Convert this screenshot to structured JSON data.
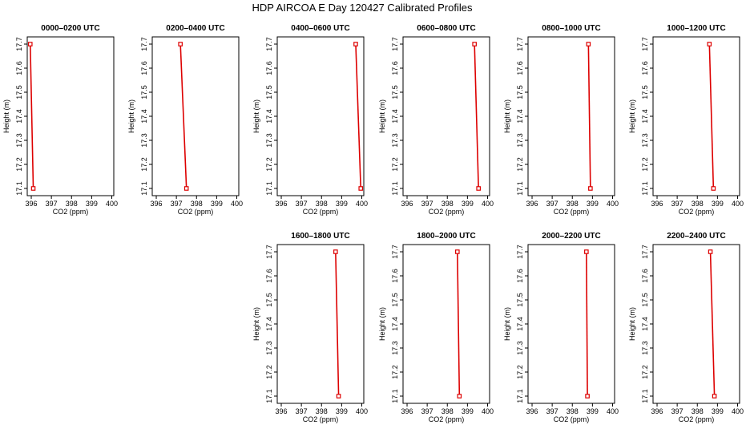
{
  "title": "HDP AIRCOA E  Day 120427  Calibrated Profiles",
  "chart_data": [
    {
      "type": "line",
      "title": "0000–0200 UTC",
      "xlabel": "CO2 (ppm)",
      "ylabel": "Height (m)",
      "xlim": [
        395.8,
        400.1
      ],
      "ylim": [
        17.07,
        17.73
      ],
      "xticks": [
        "396",
        "397",
        "398",
        "399",
        "400"
      ],
      "yticks": [
        "17.1",
        "17.2",
        "17.3",
        "17.4",
        "17.5",
        "17.6",
        "17.7"
      ],
      "series": [
        {
          "x": [
            395.95,
            396.1
          ],
          "y": [
            17.7,
            17.1
          ]
        }
      ]
    },
    {
      "type": "line",
      "title": "0200–0400 UTC",
      "xlabel": "CO2 (ppm)",
      "ylabel": "Height (m)",
      "xlim": [
        395.8,
        400.1
      ],
      "ylim": [
        17.07,
        17.73
      ],
      "xticks": [
        "396",
        "397",
        "398",
        "399",
        "400"
      ],
      "yticks": [
        "17.1",
        "17.2",
        "17.3",
        "17.4",
        "17.5",
        "17.6",
        "17.7"
      ],
      "series": [
        {
          "x": [
            397.2,
            397.5
          ],
          "y": [
            17.7,
            17.1
          ]
        }
      ]
    },
    {
      "type": "line",
      "title": "0400–0600 UTC",
      "xlabel": "CO2 (ppm)",
      "ylabel": "Height (m)",
      "xlim": [
        395.8,
        400.1
      ],
      "ylim": [
        17.07,
        17.73
      ],
      "xticks": [
        "396",
        "397",
        "398",
        "399",
        "400"
      ],
      "yticks": [
        "17.1",
        "17.2",
        "17.3",
        "17.4",
        "17.5",
        "17.6",
        "17.7"
      ],
      "series": [
        {
          "x": [
            399.7,
            399.95
          ],
          "y": [
            17.7,
            17.1
          ]
        }
      ]
    },
    {
      "type": "line",
      "title": "0600–0800 UTC",
      "xlabel": "CO2 (ppm)",
      "ylabel": "Height (m)",
      "xlim": [
        395.8,
        400.1
      ],
      "ylim": [
        17.07,
        17.73
      ],
      "xticks": [
        "396",
        "397",
        "398",
        "399",
        "400"
      ],
      "yticks": [
        "17.1",
        "17.2",
        "17.3",
        "17.4",
        "17.5",
        "17.6",
        "17.7"
      ],
      "series": [
        {
          "x": [
            399.35,
            399.55
          ],
          "y": [
            17.7,
            17.1
          ]
        }
      ]
    },
    {
      "type": "line",
      "title": "0800–1000 UTC",
      "xlabel": "CO2 (ppm)",
      "ylabel": "Height (m)",
      "xlim": [
        395.8,
        400.1
      ],
      "ylim": [
        17.07,
        17.73
      ],
      "xticks": [
        "396",
        "397",
        "398",
        "399",
        "400"
      ],
      "yticks": [
        "17.1",
        "17.2",
        "17.3",
        "17.4",
        "17.5",
        "17.6",
        "17.7"
      ],
      "series": [
        {
          "x": [
            398.8,
            398.9
          ],
          "y": [
            17.7,
            17.1
          ]
        }
      ]
    },
    {
      "type": "line",
      "title": "1000–1200 UTC",
      "xlabel": "CO2 (ppm)",
      "ylabel": "Height (m)",
      "xlim": [
        395.8,
        400.1
      ],
      "ylim": [
        17.07,
        17.73
      ],
      "xticks": [
        "396",
        "397",
        "398",
        "399",
        "400"
      ],
      "yticks": [
        "17.1",
        "17.2",
        "17.3",
        "17.4",
        "17.5",
        "17.6",
        "17.7"
      ],
      "series": [
        {
          "x": [
            398.6,
            398.8
          ],
          "y": [
            17.7,
            17.1
          ]
        }
      ]
    },
    {
      "type": "line",
      "title": "1600–1800 UTC",
      "xlabel": "CO2 (ppm)",
      "ylabel": "Height (m)",
      "xlim": [
        395.8,
        400.1
      ],
      "ylim": [
        17.07,
        17.73
      ],
      "xticks": [
        "396",
        "397",
        "398",
        "399",
        "400"
      ],
      "yticks": [
        "17.1",
        "17.2",
        "17.3",
        "17.4",
        "17.5",
        "17.6",
        "17.7"
      ],
      "series": [
        {
          "x": [
            398.7,
            398.85
          ],
          "y": [
            17.7,
            17.1
          ]
        }
      ]
    },
    {
      "type": "line",
      "title": "1800–2000 UTC",
      "xlabel": "CO2 (ppm)",
      "ylabel": "Height (m)",
      "xlim": [
        395.8,
        400.1
      ],
      "ylim": [
        17.07,
        17.73
      ],
      "xticks": [
        "396",
        "397",
        "398",
        "399",
        "400"
      ],
      "yticks": [
        "17.1",
        "17.2",
        "17.3",
        "17.4",
        "17.5",
        "17.6",
        "17.7"
      ],
      "series": [
        {
          "x": [
            398.5,
            398.6
          ],
          "y": [
            17.7,
            17.1
          ]
        }
      ]
    },
    {
      "type": "line",
      "title": "2000–2200 UTC",
      "xlabel": "CO2 (ppm)",
      "ylabel": "Height (m)",
      "xlim": [
        395.8,
        400.1
      ],
      "ylim": [
        17.07,
        17.73
      ],
      "xticks": [
        "396",
        "397",
        "398",
        "399",
        "400"
      ],
      "yticks": [
        "17.1",
        "17.2",
        "17.3",
        "17.4",
        "17.5",
        "17.6",
        "17.7"
      ],
      "series": [
        {
          "x": [
            398.7,
            398.75
          ],
          "y": [
            17.7,
            17.1
          ]
        }
      ]
    },
    {
      "type": "line",
      "title": "2200–2400 UTC",
      "xlabel": "CO2 (ppm)",
      "ylabel": "Height (m)",
      "xlim": [
        395.8,
        400.1
      ],
      "ylim": [
        17.07,
        17.73
      ],
      "xticks": [
        "396",
        "397",
        "398",
        "399",
        "400"
      ],
      "yticks": [
        "17.1",
        "17.2",
        "17.3",
        "17.4",
        "17.5",
        "17.6",
        "17.7"
      ],
      "series": [
        {
          "x": [
            398.65,
            398.85
          ],
          "y": [
            17.7,
            17.1
          ]
        }
      ]
    }
  ],
  "colors": {
    "line": "#dd0000",
    "axis": "#000000",
    "background": "#ffffff"
  }
}
